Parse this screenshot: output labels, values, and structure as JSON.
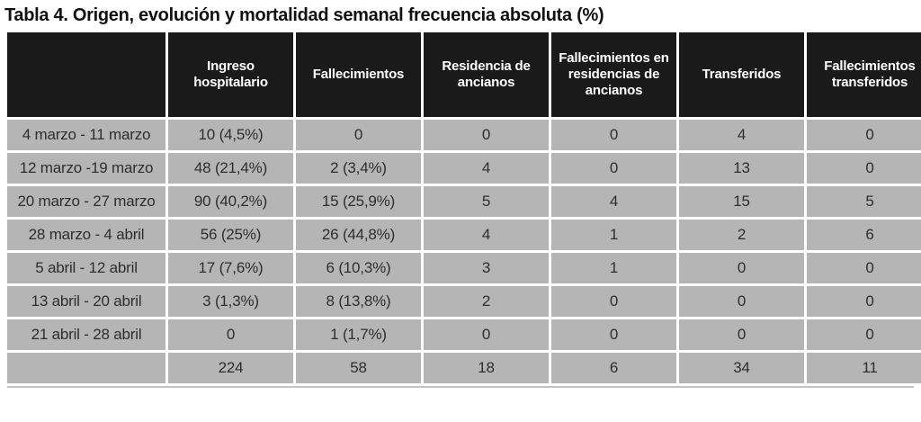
{
  "title": "Tabla 4. Origen, evolución y mortalidad semanal frecuencia absoluta (%)",
  "table": {
    "columns": [
      "",
      "Ingreso hospitalario",
      "Fallecimientos",
      "Residencia de ancianos",
      "Fallecimientos en residencias de ancianos",
      "Transferidos",
      "Fallecimientos transferidos"
    ],
    "rows": [
      {
        "label": "4 marzo - 11 marzo",
        "values": [
          "10 (4,5%)",
          "0",
          "0",
          "0",
          "4",
          "0"
        ]
      },
      {
        "label": "12 marzo -19 marzo",
        "values": [
          "48 (21,4%)",
          "2 (3,4%)",
          "4",
          "0",
          "13",
          "0"
        ]
      },
      {
        "label": "20 marzo - 27 marzo",
        "values": [
          "90 (40,2%)",
          "15 (25,9%)",
          "5",
          "4",
          "15",
          "5"
        ]
      },
      {
        "label": "28 marzo - 4 abril",
        "values": [
          "56 (25%)",
          "26 (44,8%)",
          "4",
          "1",
          "2",
          "6"
        ]
      },
      {
        "label": "5 abril - 12 abril",
        "values": [
          "17 (7,6%)",
          "6 (10,3%)",
          "3",
          "1",
          "0",
          "0"
        ]
      },
      {
        "label": "13 abril - 20 abril",
        "values": [
          "3 (1,3%)",
          "8 (13,8%)",
          "2",
          "0",
          "0",
          "0"
        ]
      },
      {
        "label": "21 abril - 28 abril",
        "values": [
          "0",
          "1 (1,7%)",
          "0",
          "0",
          "0",
          "0"
        ]
      },
      {
        "label": "",
        "values": [
          "224",
          "58",
          "18",
          "6",
          "34",
          "11"
        ]
      }
    ],
    "colors": {
      "header_bg": "#1a1a1a",
      "header_text": "#ffffff",
      "cell_bg": "#b5b5b5",
      "cell_text": "#2e2e2e",
      "grid": "#ffffff"
    }
  }
}
